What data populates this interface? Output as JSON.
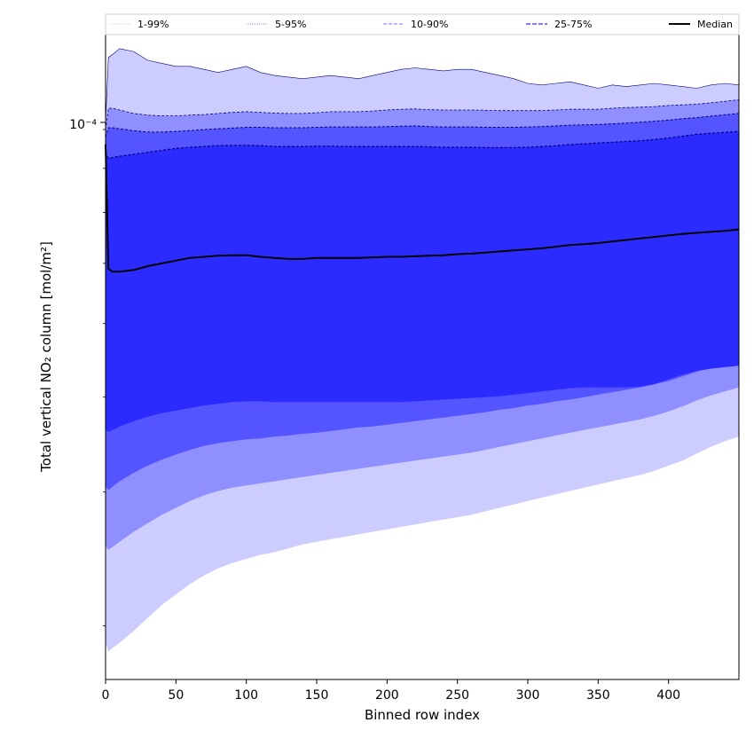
{
  "chart_data": {
    "type": "area",
    "xlabel": "Binned row index",
    "ylabel": "Total vertical NO₂ column [mol/m²]",
    "xlim": [
      0,
      450
    ],
    "ylim": [
      1.7e-05,
      0.00012
    ],
    "yscale": "log",
    "x_ticks": [
      0,
      50,
      100,
      150,
      200,
      250,
      300,
      350,
      400
    ],
    "y_tick_label": "10⁻⁴",
    "y_tick_value": 0.0001,
    "grid": false,
    "legend_position": "top",
    "legend": [
      "1-99%",
      "5-95%",
      "10-90%",
      "25-75%",
      "Median"
    ],
    "colors": {
      "band_1_99": "#ccccff",
      "band_5_95": "#8f8fff",
      "band_10_90": "#5555ff",
      "band_25_75": "#2b2bff",
      "median": "#000000",
      "edge": "#000080"
    },
    "x": [
      0,
      2,
      5,
      10,
      20,
      30,
      40,
      50,
      60,
      70,
      80,
      90,
      100,
      110,
      120,
      130,
      140,
      150,
      160,
      170,
      180,
      190,
      200,
      210,
      220,
      230,
      240,
      250,
      260,
      270,
      280,
      290,
      300,
      310,
      320,
      330,
      340,
      350,
      360,
      370,
      380,
      390,
      400,
      410,
      420,
      430,
      440,
      450
    ],
    "series": [
      {
        "name": "1-99%",
        "upper": [
          9.2e-05,
          0.000112,
          0.000113,
          0.000115,
          0.000114,
          0.000111,
          0.00011,
          0.000109,
          0.000109,
          0.000108,
          0.000107,
          0.000108,
          0.000109,
          0.000107,
          0.000106,
          0.0001055,
          0.000105,
          0.0001055,
          0.000106,
          0.0001055,
          0.000105,
          0.000106,
          0.000107,
          0.000108,
          0.0001085,
          0.000108,
          0.0001075,
          0.000108,
          0.000108,
          0.000107,
          0.000106,
          0.000105,
          0.0001035,
          0.000103,
          0.0001035,
          0.000104,
          0.000103,
          0.000102,
          0.000103,
          0.0001025,
          0.000103,
          0.0001035,
          0.000103,
          0.0001025,
          0.000102,
          0.000103,
          0.0001035,
          0.000103
        ],
        "lower": [
          1.9e-05,
          1.85e-05,
          1.87e-05,
          1.9e-05,
          1.97e-05,
          2.05e-05,
          2.13e-05,
          2.2e-05,
          2.27e-05,
          2.33e-05,
          2.38e-05,
          2.42e-05,
          2.45e-05,
          2.48e-05,
          2.5e-05,
          2.53e-05,
          2.56e-05,
          2.58e-05,
          2.6e-05,
          2.62e-05,
          2.64e-05,
          2.66e-05,
          2.68e-05,
          2.7e-05,
          2.72e-05,
          2.74e-05,
          2.76e-05,
          2.78e-05,
          2.8e-05,
          2.83e-05,
          2.86e-05,
          2.89e-05,
          2.92e-05,
          2.95e-05,
          2.98e-05,
          3.01e-05,
          3.04e-05,
          3.07e-05,
          3.1e-05,
          3.13e-05,
          3.16e-05,
          3.2e-05,
          3.25e-05,
          3.3e-05,
          3.37e-05,
          3.44e-05,
          3.5e-05,
          3.55e-05
        ]
      },
      {
        "name": "5-95%",
        "upper": [
          9e-05,
          9.6e-05,
          9.6e-05,
          9.55e-05,
          9.45e-05,
          9.4e-05,
          9.38e-05,
          9.38e-05,
          9.4e-05,
          9.42e-05,
          9.45e-05,
          9.48e-05,
          9.5e-05,
          9.48e-05,
          9.46e-05,
          9.45e-05,
          9.45e-05,
          9.47e-05,
          9.5e-05,
          9.5e-05,
          9.5e-05,
          9.52e-05,
          9.55e-05,
          9.57e-05,
          9.58e-05,
          9.56e-05,
          9.55e-05,
          9.55e-05,
          9.55e-05,
          9.54e-05,
          9.53e-05,
          9.53e-05,
          9.53e-05,
          9.53e-05,
          9.55e-05,
          9.57e-05,
          9.57e-05,
          9.57e-05,
          9.6e-05,
          9.62e-05,
          9.63e-05,
          9.65e-05,
          9.68e-05,
          9.7e-05,
          9.72e-05,
          9.76e-05,
          9.8e-05,
          9.85e-05
        ],
        "lower": [
          2.55e-05,
          2.52e-05,
          2.54e-05,
          2.58e-05,
          2.66e-05,
          2.73e-05,
          2.8e-05,
          2.86e-05,
          2.92e-05,
          2.97e-05,
          3.01e-05,
          3.04e-05,
          3.06e-05,
          3.08e-05,
          3.1e-05,
          3.12e-05,
          3.14e-05,
          3.16e-05,
          3.18e-05,
          3.2e-05,
          3.22e-05,
          3.24e-05,
          3.26e-05,
          3.28e-05,
          3.3e-05,
          3.32e-05,
          3.34e-05,
          3.36e-05,
          3.38e-05,
          3.41e-05,
          3.44e-05,
          3.47e-05,
          3.5e-05,
          3.53e-05,
          3.56e-05,
          3.59e-05,
          3.62e-05,
          3.65e-05,
          3.68e-05,
          3.71e-05,
          3.74e-05,
          3.78e-05,
          3.83e-05,
          3.89e-05,
          3.96e-05,
          4.02e-05,
          4.07e-05,
          4.12e-05
        ]
      },
      {
        "name": "10-90%",
        "upper": [
          8.8e-05,
          9.05e-05,
          9.05e-05,
          9.02e-05,
          8.97e-05,
          8.93e-05,
          8.93e-05,
          8.95e-05,
          8.97e-05,
          9e-05,
          9.02e-05,
          9.04e-05,
          9.06e-05,
          9.06e-05,
          9.05e-05,
          9.05e-05,
          9.05e-05,
          9.06e-05,
          9.07e-05,
          9.07e-05,
          9.07e-05,
          9.07e-05,
          9.08e-05,
          9.09e-05,
          9.1e-05,
          9.08e-05,
          9.07e-05,
          9.07e-05,
          9.07e-05,
          9.06e-05,
          9.06e-05,
          9.06e-05,
          9.07e-05,
          9.08e-05,
          9.1e-05,
          9.12e-05,
          9.13e-05,
          9.14e-05,
          9.16e-05,
          9.18e-05,
          9.2e-05,
          9.23e-05,
          9.26e-05,
          9.3e-05,
          9.33e-05,
          9.37e-05,
          9.41e-05,
          9.45e-05
        ],
        "lower": [
          3.05e-05,
          3.02e-05,
          3.05e-05,
          3.1e-05,
          3.18e-05,
          3.25e-05,
          3.31e-05,
          3.36e-05,
          3.41e-05,
          3.45e-05,
          3.48e-05,
          3.5e-05,
          3.52e-05,
          3.53e-05,
          3.55e-05,
          3.56e-05,
          3.58e-05,
          3.59e-05,
          3.61e-05,
          3.63e-05,
          3.65e-05,
          3.66e-05,
          3.68e-05,
          3.7e-05,
          3.72e-05,
          3.74e-05,
          3.76e-05,
          3.78e-05,
          3.8e-05,
          3.82e-05,
          3.85e-05,
          3.87e-05,
          3.9e-05,
          3.92e-05,
          3.95e-05,
          3.97e-05,
          4e-05,
          4.03e-05,
          4.06e-05,
          4.09e-05,
          4.12e-05,
          4.16e-05,
          4.2e-05,
          4.26e-05,
          4.32e-05,
          4.38e-05,
          4.42e-05,
          4.46e-05
        ]
      },
      {
        "name": "25-75%",
        "upper": [
          8.4e-05,
          8.25e-05,
          8.27e-05,
          8.3e-05,
          8.35e-05,
          8.4e-05,
          8.45e-05,
          8.5e-05,
          8.53e-05,
          8.55e-05,
          8.57e-05,
          8.58e-05,
          8.58e-05,
          8.57e-05,
          8.55e-05,
          8.55e-05,
          8.55e-05,
          8.56e-05,
          8.56e-05,
          8.55e-05,
          8.55e-05,
          8.55e-05,
          8.55e-05,
          8.55e-05,
          8.55e-05,
          8.54e-05,
          8.53e-05,
          8.53e-05,
          8.53e-05,
          8.52e-05,
          8.52e-05,
          8.52e-05,
          8.53e-05,
          8.55e-05,
          8.57e-05,
          8.6e-05,
          8.62e-05,
          8.64e-05,
          8.66e-05,
          8.68e-05,
          8.7e-05,
          8.73e-05,
          8.77e-05,
          8.82e-05,
          8.87e-05,
          8.9e-05,
          8.92e-05,
          8.95e-05
        ],
        "lower": [
          3.62e-05,
          3.6e-05,
          3.62e-05,
          3.66e-05,
          3.72e-05,
          3.77e-05,
          3.81e-05,
          3.84e-05,
          3.87e-05,
          3.9e-05,
          3.92e-05,
          3.94e-05,
          3.95e-05,
          3.95e-05,
          3.94e-05,
          3.94e-05,
          3.94e-05,
          3.94e-05,
          3.94e-05,
          3.94e-05,
          3.94e-05,
          3.94e-05,
          3.94e-05,
          3.94e-05,
          3.95e-05,
          3.96e-05,
          3.97e-05,
          3.98e-05,
          3.99e-05,
          4e-05,
          4.01e-05,
          4.03e-05,
          4.05e-05,
          4.07e-05,
          4.09e-05,
          4.11e-05,
          4.12e-05,
          4.12e-05,
          4.12e-05,
          4.12e-05,
          4.13e-05,
          4.16e-05,
          4.22e-05,
          4.28e-05,
          4.33e-05,
          4.36e-05,
          4.38e-05,
          4.4e-05
        ]
      },
      {
        "name": "Median",
        "values": [
          8.6e-05,
          5.9e-05,
          5.85e-05,
          5.85e-05,
          5.88e-05,
          5.95e-05,
          6e-05,
          6.05e-05,
          6.1e-05,
          6.12e-05,
          6.14e-05,
          6.15e-05,
          6.15e-05,
          6.12e-05,
          6.1e-05,
          6.08e-05,
          6.08e-05,
          6.1e-05,
          6.1e-05,
          6.1e-05,
          6.1e-05,
          6.11e-05,
          6.12e-05,
          6.12e-05,
          6.13e-05,
          6.14e-05,
          6.15e-05,
          6.17e-05,
          6.18e-05,
          6.2e-05,
          6.22e-05,
          6.24e-05,
          6.26e-05,
          6.28e-05,
          6.31e-05,
          6.34e-05,
          6.36e-05,
          6.38e-05,
          6.41e-05,
          6.44e-05,
          6.47e-05,
          6.5e-05,
          6.53e-05,
          6.56e-05,
          6.58e-05,
          6.6e-05,
          6.62e-05,
          6.65e-05
        ]
      }
    ]
  }
}
